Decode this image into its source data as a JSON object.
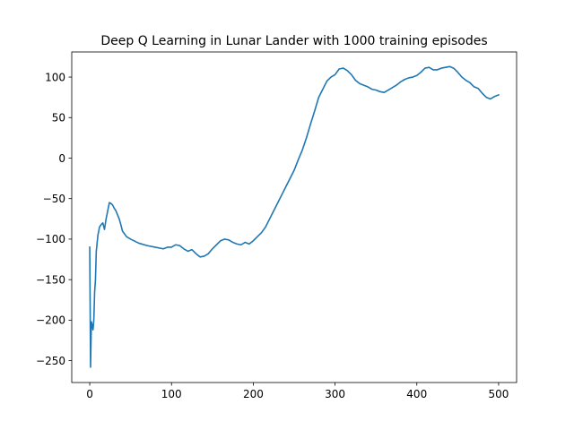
{
  "chart_data": {
    "type": "line",
    "title": "Deep Q Learning in Lunar Lander with 1000 training episodes",
    "xlabel": "",
    "ylabel": "",
    "xlim": [
      -22,
      522
    ],
    "ylim": [
      -277,
      131
    ],
    "xticks": [
      0,
      100,
      200,
      300,
      400,
      500
    ],
    "yticks": [
      -250,
      -200,
      -150,
      -100,
      -50,
      0,
      50,
      100
    ],
    "xtick_labels": [
      "0",
      "100",
      "200",
      "300",
      "400",
      "500"
    ],
    "ytick_labels": [
      "−250",
      "−200",
      "−150",
      "−100",
      "−50",
      "0",
      "50",
      "100"
    ],
    "grid": false,
    "series": [
      {
        "color": "#1f77b4",
        "x": [
          0,
          1,
          2,
          3,
          4,
          5,
          6,
          7,
          8,
          9,
          10,
          12,
          14,
          16,
          18,
          20,
          22,
          24,
          26,
          28,
          30,
          32,
          34,
          36,
          38,
          40,
          45,
          50,
          60,
          70,
          80,
          90,
          95,
          100,
          105,
          110,
          115,
          120,
          125,
          130,
          135,
          140,
          145,
          150,
          155,
          160,
          165,
          170,
          175,
          180,
          185,
          190,
          195,
          200,
          205,
          210,
          215,
          220,
          225,
          230,
          235,
          240,
          245,
          250,
          255,
          260,
          265,
          270,
          275,
          280,
          285,
          290,
          295,
          300,
          305,
          310,
          315,
          320,
          325,
          330,
          335,
          340,
          345,
          350,
          355,
          360,
          365,
          370,
          375,
          380,
          385,
          390,
          395,
          400,
          405,
          410,
          415,
          420,
          425,
          430,
          435,
          440,
          445,
          450,
          455,
          460,
          465,
          470,
          475,
          480,
          485,
          490,
          495,
          500
        ],
        "values": [
          -110,
          -258,
          -202,
          -206,
          -212,
          -200,
          -165,
          -150,
          -115,
          -105,
          -95,
          -85,
          -82,
          -80,
          -88,
          -75,
          -65,
          -55,
          -56,
          -58,
          -62,
          -65,
          -70,
          -75,
          -82,
          -90,
          -97,
          -100,
          -105,
          -108,
          -110,
          -112,
          -110,
          -110,
          -107,
          -108,
          -112,
          -115,
          -113,
          -118,
          -122,
          -121,
          -118,
          -112,
          -107,
          -102,
          -100,
          -101,
          -104,
          -106,
          -107,
          -104,
          -106,
          -102,
          -97,
          -92,
          -85,
          -75,
          -65,
          -55,
          -45,
          -35,
          -25,
          -15,
          -2,
          10,
          25,
          42,
          58,
          75,
          85,
          95,
          100,
          103,
          110,
          111,
          108,
          103,
          96,
          92,
          90,
          88,
          85,
          84,
          82,
          81,
          84,
          87,
          90,
          94,
          97,
          99,
          100,
          102,
          106,
          111,
          112,
          109,
          109,
          111,
          112,
          113,
          111,
          106,
          100,
          96,
          93,
          88,
          86,
          80,
          75,
          73,
          76,
          78
        ]
      }
    ]
  }
}
